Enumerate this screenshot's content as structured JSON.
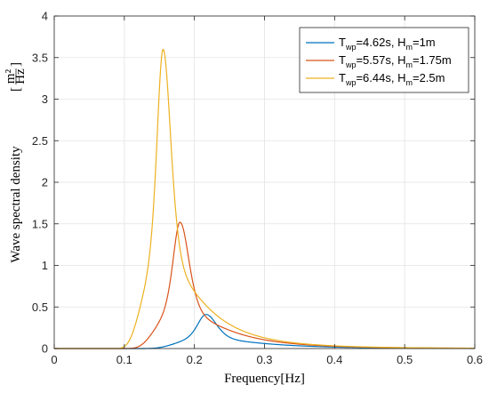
{
  "chart_data": {
    "type": "line",
    "xlabel": "Frequency[Hz]",
    "ylabel": "Wave spectral density",
    "ylabel_unit": {
      "numerator": "m²",
      "denominator": "Hz"
    },
    "xlim": [
      0,
      0.6
    ],
    "ylim": [
      0,
      4
    ],
    "xticks": [
      0,
      0.1,
      0.2,
      0.3,
      0.4,
      0.5,
      0.6
    ],
    "xtick_labels": [
      "0",
      "0.1",
      "0.2",
      "0.3",
      "0.4",
      "0.5",
      "0.6"
    ],
    "yticks": [
      0,
      0.5,
      1,
      1.5,
      2,
      2.5,
      3,
      3.5,
      4
    ],
    "ytick_labels": [
      "0",
      "0.5",
      "1",
      "1.5",
      "2",
      "2.5",
      "3",
      "3.5",
      "4"
    ],
    "grid": true,
    "legend_position": "top-right",
    "series": [
      {
        "name": "Twp=4.62s, Hm=1m",
        "legend": {
          "t_main": "T",
          "t_sub": "wp",
          "t_val": "=4.62s, H",
          "h_sub": "m",
          "h_val": "=1m"
        },
        "color": "#0072BD",
        "peak_x": 0.2165,
        "peak_y": 0.41
      },
      {
        "name": "Twp=5.57s, Hm=1.75m",
        "legend": {
          "t_main": "T",
          "t_sub": "wp",
          "t_val": "=5.57s, H",
          "h_sub": "m",
          "h_val": "=1.75m"
        },
        "color": "#D95319",
        "peak_x": 0.1795,
        "peak_y": 1.52
      },
      {
        "name": "Twp=6.44s, Hm=2.5m",
        "legend": {
          "t_main": "T",
          "t_sub": "wp",
          "t_val": "=6.44s, H",
          "h_sub": "m",
          "h_val": "=2.5m"
        },
        "color": "#EDB120",
        "peak_x": 0.1553,
        "peak_y": 3.6
      }
    ]
  }
}
